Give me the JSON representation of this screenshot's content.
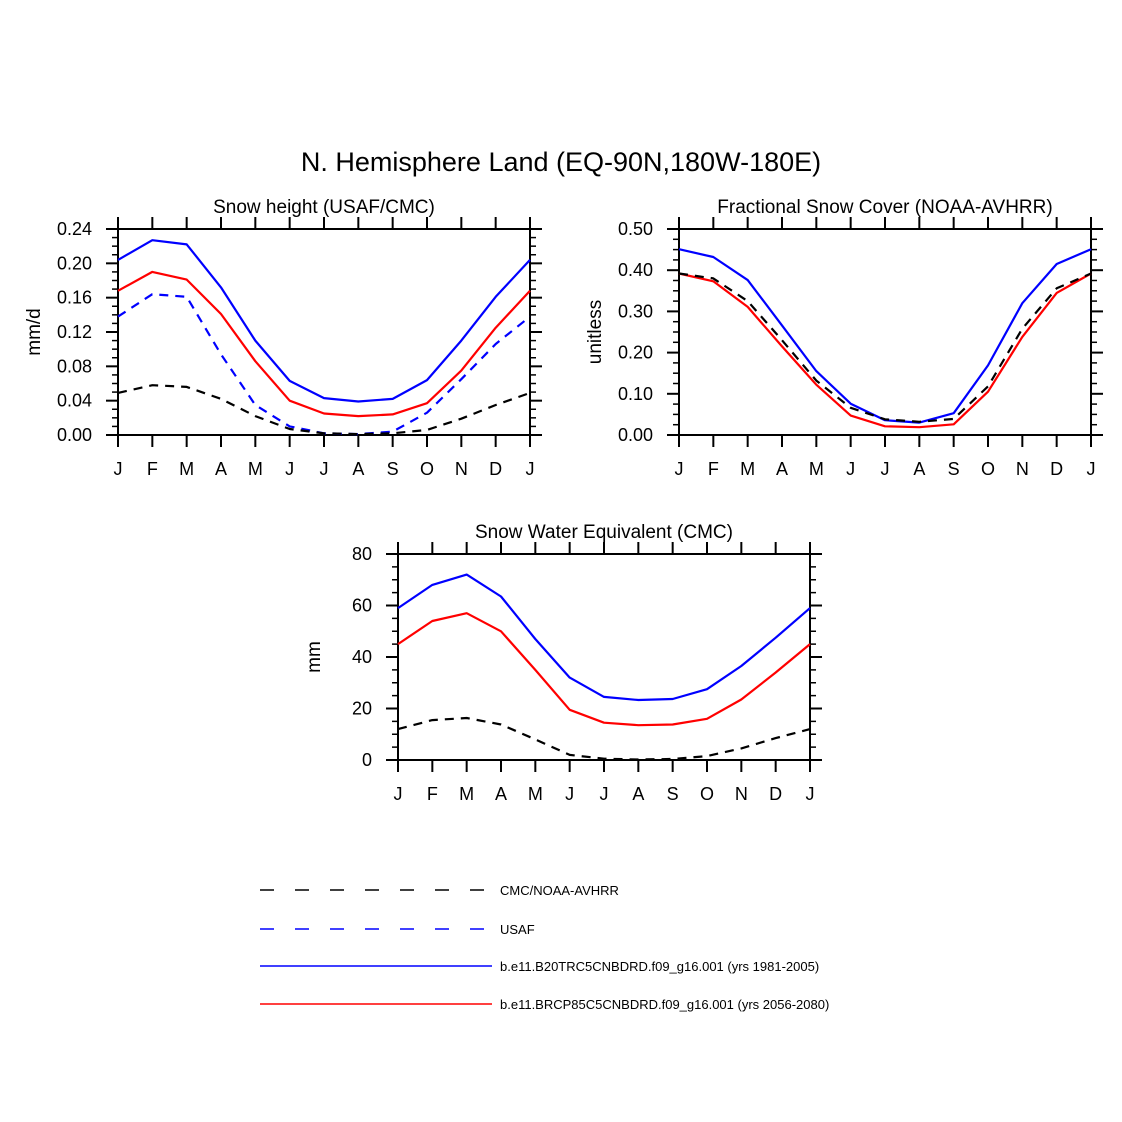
{
  "figure": {
    "title": "N. Hemisphere Land (EQ-90N,180W-180E)"
  },
  "styles": {
    "obs_color": "#000000",
    "usaf_color": "#0000ff",
    "hist_color": "#0000ff",
    "future_color": "#ff0000"
  },
  "legend": [
    {
      "key": "obs",
      "label": "CMC/NOAA-AVHRR",
      "color": "#000000",
      "dash": true
    },
    {
      "key": "usaf",
      "label": "USAF",
      "color": "#0000ff",
      "dash": true
    },
    {
      "key": "hist",
      "label": "b.e11.B20TRC5CNBDRD.f09_g16.001 (yrs 1981-2005)",
      "color": "#0000ff",
      "dash": false
    },
    {
      "key": "future",
      "label": "b.e11.BRCP85C5CNBDRD.f09_g16.001 (yrs 2056-2080)",
      "color": "#ff0000",
      "dash": false
    }
  ],
  "chart_data": [
    {
      "id": "snow-height",
      "type": "line",
      "title": "Snow height (USAF/CMC)",
      "ylabel": "mm/d",
      "xlabel": "",
      "categories": [
        "J",
        "F",
        "M",
        "A",
        "M",
        "J",
        "J",
        "A",
        "S",
        "O",
        "N",
        "D",
        "J"
      ],
      "ylim": [
        0,
        0.24
      ],
      "yticks": [
        0,
        0.04,
        0.08,
        0.12,
        0.16,
        0.2,
        0.24
      ],
      "ytick_labels": [
        "0.00",
        "0.04",
        "0.08",
        "0.12",
        "0.16",
        "0.20",
        "0.24"
      ],
      "series": [
        {
          "name": "b.e11.B20TRC5CNBDRD.f09_g16.001 (yrs 1981-2005)",
          "key": "hist",
          "values": [
            0.204,
            0.227,
            0.222,
            0.172,
            0.11,
            0.063,
            0.043,
            0.039,
            0.042,
            0.064,
            0.11,
            0.161,
            0.204
          ]
        },
        {
          "name": "b.e11.BRCP85C5CNBDRD.f09_g16.001 (yrs 2056-2080)",
          "key": "future",
          "values": [
            0.168,
            0.19,
            0.181,
            0.141,
            0.086,
            0.04,
            0.025,
            0.022,
            0.024,
            0.037,
            0.075,
            0.125,
            0.168
          ]
        },
        {
          "name": "USAF",
          "key": "usaf",
          "values": [
            0.138,
            0.164,
            0.161,
            0.094,
            0.035,
            0.01,
            0.002,
            0.001,
            0.004,
            0.026,
            0.065,
            0.106,
            0.138
          ]
        },
        {
          "name": "CMC/NOAA-AVHRR",
          "key": "obs",
          "values": [
            0.049,
            0.058,
            0.056,
            0.042,
            0.022,
            0.007,
            0.002,
            0.001,
            0.002,
            0.006,
            0.019,
            0.035,
            0.049
          ]
        }
      ]
    },
    {
      "id": "snow-cover",
      "type": "line",
      "title": "Fractional Snow Cover (NOAA-AVHRR)",
      "ylabel": "unitless",
      "xlabel": "",
      "categories": [
        "J",
        "F",
        "M",
        "A",
        "M",
        "J",
        "J",
        "A",
        "S",
        "O",
        "N",
        "D",
        "J"
      ],
      "ylim": [
        0,
        0.5
      ],
      "yticks": [
        0,
        0.1,
        0.2,
        0.3,
        0.4,
        0.5
      ],
      "ytick_labels": [
        "0.00",
        "0.10",
        "0.20",
        "0.30",
        "0.40",
        "0.50"
      ],
      "series": [
        {
          "name": "b.e11.B20TRC5CNBDRD.f09_g16.001 (yrs 1981-2005)",
          "key": "hist",
          "values": [
            0.451,
            0.432,
            0.376,
            0.266,
            0.155,
            0.076,
            0.036,
            0.03,
            0.053,
            0.169,
            0.32,
            0.415,
            0.451
          ]
        },
        {
          "name": "b.e11.BRCP85C5CNBDRD.f09_g16.001 (yrs 2056-2080)",
          "key": "future",
          "values": [
            0.392,
            0.373,
            0.311,
            0.215,
            0.122,
            0.047,
            0.021,
            0.019,
            0.026,
            0.105,
            0.238,
            0.345,
            0.392
          ]
        },
        {
          "name": "CMC/NOAA-AVHRR",
          "key": "obs",
          "values": [
            0.392,
            0.38,
            0.325,
            0.23,
            0.132,
            0.066,
            0.038,
            0.032,
            0.039,
            0.118,
            0.258,
            0.356,
            0.392
          ]
        }
      ]
    },
    {
      "id": "swe",
      "type": "line",
      "title": "Snow Water Equivalent (CMC)",
      "ylabel": "mm",
      "xlabel": "",
      "categories": [
        "J",
        "F",
        "M",
        "A",
        "M",
        "J",
        "J",
        "A",
        "S",
        "O",
        "N",
        "D",
        "J"
      ],
      "ylim": [
        0,
        80
      ],
      "yticks": [
        0,
        20,
        40,
        60,
        80
      ],
      "ytick_labels": [
        "0",
        "20",
        "40",
        "60",
        "80"
      ],
      "series": [
        {
          "name": "b.e11.B20TRC5CNBDRD.f09_g16.001 (yrs 1981-2005)",
          "key": "hist",
          "values": [
            59.0,
            68.0,
            72.0,
            63.5,
            47.0,
            32.0,
            24.5,
            23.3,
            23.7,
            27.5,
            36.5,
            47.5,
            59.0
          ]
        },
        {
          "name": "b.e11.BRCP85C5CNBDRD.f09_g16.001 (yrs 2056-2080)",
          "key": "future",
          "values": [
            45.0,
            54.0,
            57.0,
            50.0,
            35.0,
            19.5,
            14.5,
            13.5,
            13.8,
            16.0,
            23.5,
            34.0,
            45.0
          ]
        },
        {
          "name": "CMC/NOAA-AVHRR",
          "key": "obs",
          "values": [
            12.0,
            15.5,
            16.3,
            13.8,
            8.0,
            2.0,
            0.5,
            0.2,
            0.4,
            1.5,
            4.5,
            8.5,
            12.0
          ]
        }
      ]
    }
  ]
}
